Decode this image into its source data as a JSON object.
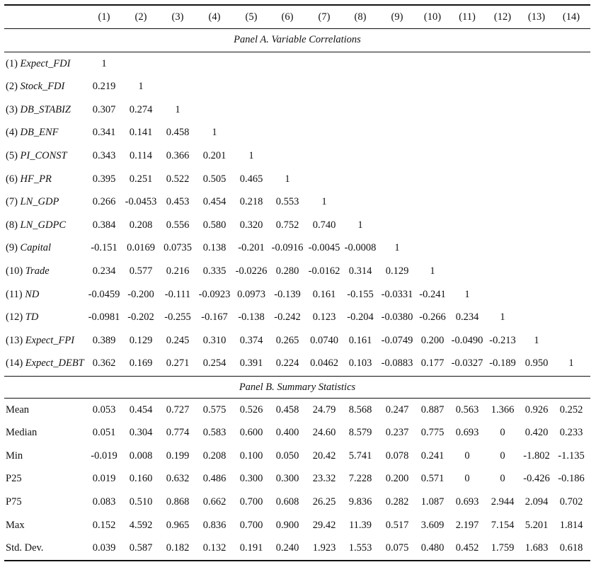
{
  "columns": [
    "(1)",
    "(2)",
    "(3)",
    "(4)",
    "(5)",
    "(6)",
    "(7)",
    "(8)",
    "(9)",
    "(10)",
    "(11)",
    "(12)",
    "(13)",
    "(14)"
  ],
  "panel_a": {
    "title": "Panel A. Variable Correlations",
    "rows": [
      {
        "num": "(1)",
        "name": "Expect_FDI",
        "values": [
          "1"
        ]
      },
      {
        "num": "(2)",
        "name": "Stock_FDI",
        "values": [
          "0.219",
          "1"
        ]
      },
      {
        "num": "(3)",
        "name": "DB_STABIZ",
        "values": [
          "0.307",
          "0.274",
          "1"
        ]
      },
      {
        "num": "(4)",
        "name": "DB_ENF",
        "values": [
          "0.341",
          "0.141",
          "0.458",
          "1"
        ]
      },
      {
        "num": "(5)",
        "name": "PI_CONST",
        "values": [
          "0.343",
          "0.114",
          "0.366",
          "0.201",
          "1"
        ]
      },
      {
        "num": "(6)",
        "name": "HF_PR",
        "values": [
          "0.395",
          "0.251",
          "0.522",
          "0.505",
          "0.465",
          "1"
        ]
      },
      {
        "num": "(7)",
        "name": "LN_GDP",
        "values": [
          "0.266",
          "-0.0453",
          "0.453",
          "0.454",
          "0.218",
          "0.553",
          "1"
        ]
      },
      {
        "num": "(8)",
        "name": "LN_GDPC",
        "values": [
          "0.384",
          "0.208",
          "0.556",
          "0.580",
          "0.320",
          "0.752",
          "0.740",
          "1"
        ]
      },
      {
        "num": "(9)",
        "name": "Capital",
        "values": [
          "-0.151",
          "0.0169",
          "0.0735",
          "0.138",
          "-0.201",
          "-0.0916",
          "-0.0045",
          "-0.0008",
          "1"
        ]
      },
      {
        "num": "(10)",
        "name": "Trade",
        "values": [
          "0.234",
          "0.577",
          "0.216",
          "0.335",
          "-0.0226",
          "0.280",
          "-0.0162",
          "0.314",
          "0.129",
          "1"
        ]
      },
      {
        "num": "(11)",
        "name": "ND",
        "values": [
          "-0.0459",
          "-0.200",
          "-0.111",
          "-0.0923",
          "0.0973",
          "-0.139",
          "0.161",
          "-0.155",
          "-0.0331",
          "-0.241",
          "1"
        ]
      },
      {
        "num": "(12)",
        "name": "TD",
        "values": [
          "-0.0981",
          "-0.202",
          "-0.255",
          "-0.167",
          "-0.138",
          "-0.242",
          "0.123",
          "-0.204",
          "-0.0380",
          "-0.266",
          "0.234",
          "1"
        ]
      },
      {
        "num": "(13)",
        "name": "Expect_FPI",
        "values": [
          "0.389",
          "0.129",
          "0.245",
          "0.310",
          "0.374",
          "0.265",
          "0.0740",
          "0.161",
          "-0.0749",
          "0.200",
          "-0.0490",
          "-0.213",
          "1"
        ]
      },
      {
        "num": "(14)",
        "name": "Expect_DEBT",
        "values": [
          "0.362",
          "0.169",
          "0.271",
          "0.254",
          "0.391",
          "0.224",
          "0.0462",
          "0.103",
          "-0.0883",
          "0.177",
          "-0.0327",
          "-0.189",
          "0.950",
          "1"
        ]
      }
    ]
  },
  "panel_b": {
    "title": "Panel B. Summary Statistics",
    "rows": [
      {
        "label": "Mean",
        "values": [
          "0.053",
          "0.454",
          "0.727",
          "0.575",
          "0.526",
          "0.458",
          "24.79",
          "8.568",
          "0.247",
          "0.887",
          "0.563",
          "1.366",
          "0.926",
          "0.252"
        ]
      },
      {
        "label": "Median",
        "values": [
          "0.051",
          "0.304",
          "0.774",
          "0.583",
          "0.600",
          "0.400",
          "24.60",
          "8.579",
          "0.237",
          "0.775",
          "0.693",
          "0",
          "0.420",
          "0.233"
        ]
      },
      {
        "label": "Min",
        "values": [
          "-0.019",
          "0.008",
          "0.199",
          "0.208",
          "0.100",
          "0.050",
          "20.42",
          "5.741",
          "0.078",
          "0.241",
          "0",
          "0",
          "-1.802",
          "-1.135"
        ]
      },
      {
        "label": "P25",
        "values": [
          "0.019",
          "0.160",
          "0.632",
          "0.486",
          "0.300",
          "0.300",
          "23.32",
          "7.228",
          "0.200",
          "0.571",
          "0",
          "0",
          "-0.426",
          "-0.186"
        ]
      },
      {
        "label": "P75",
        "values": [
          "0.083",
          "0.510",
          "0.868",
          "0.662",
          "0.700",
          "0.608",
          "26.25",
          "9.836",
          "0.282",
          "1.087",
          "0.693",
          "2.944",
          "2.094",
          "0.702"
        ]
      },
      {
        "label": "Max",
        "values": [
          "0.152",
          "4.592",
          "0.965",
          "0.836",
          "0.700",
          "0.900",
          "29.42",
          "11.39",
          "0.517",
          "3.609",
          "2.197",
          "7.154",
          "5.201",
          "1.814"
        ]
      },
      {
        "label": "Std. Dev.",
        "values": [
          "0.039",
          "0.587",
          "0.182",
          "0.132",
          "0.191",
          "0.240",
          "1.923",
          "1.553",
          "0.075",
          "0.480",
          "0.452",
          "1.759",
          "1.683",
          "0.618"
        ]
      }
    ]
  }
}
